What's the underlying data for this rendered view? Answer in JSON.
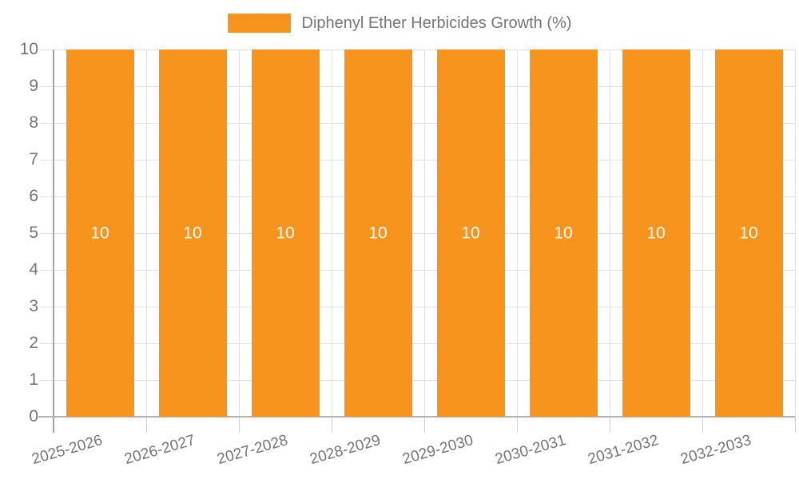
{
  "chart_data": {
    "type": "bar",
    "title": "",
    "legend": {
      "label": "Diphenyl Ether Herbicides Growth (%)",
      "position": "top-center"
    },
    "categories": [
      "2025-2026",
      "2026-2027",
      "2027-2028",
      "2028-2029",
      "2029-2030",
      "2030-2031",
      "2031-2032",
      "2032-2033"
    ],
    "values": [
      10,
      10,
      10,
      10,
      10,
      10,
      10,
      10
    ],
    "bar_value_labels": [
      "10",
      "10",
      "10",
      "10",
      "10",
      "10",
      "10",
      "10"
    ],
    "xlabel": "",
    "ylabel": "",
    "ylim": [
      0,
      10
    ],
    "ytick_labels": [
      "0",
      "1",
      "2",
      "3",
      "4",
      "5",
      "6",
      "7",
      "8",
      "9",
      "10"
    ],
    "grid": true,
    "colors": {
      "bar": "#f7941e",
      "axis_text": "#757575",
      "grid_line": "#e0e0e0",
      "axis_line": "#b3b3b3",
      "bar_label": "#ffffff"
    }
  }
}
